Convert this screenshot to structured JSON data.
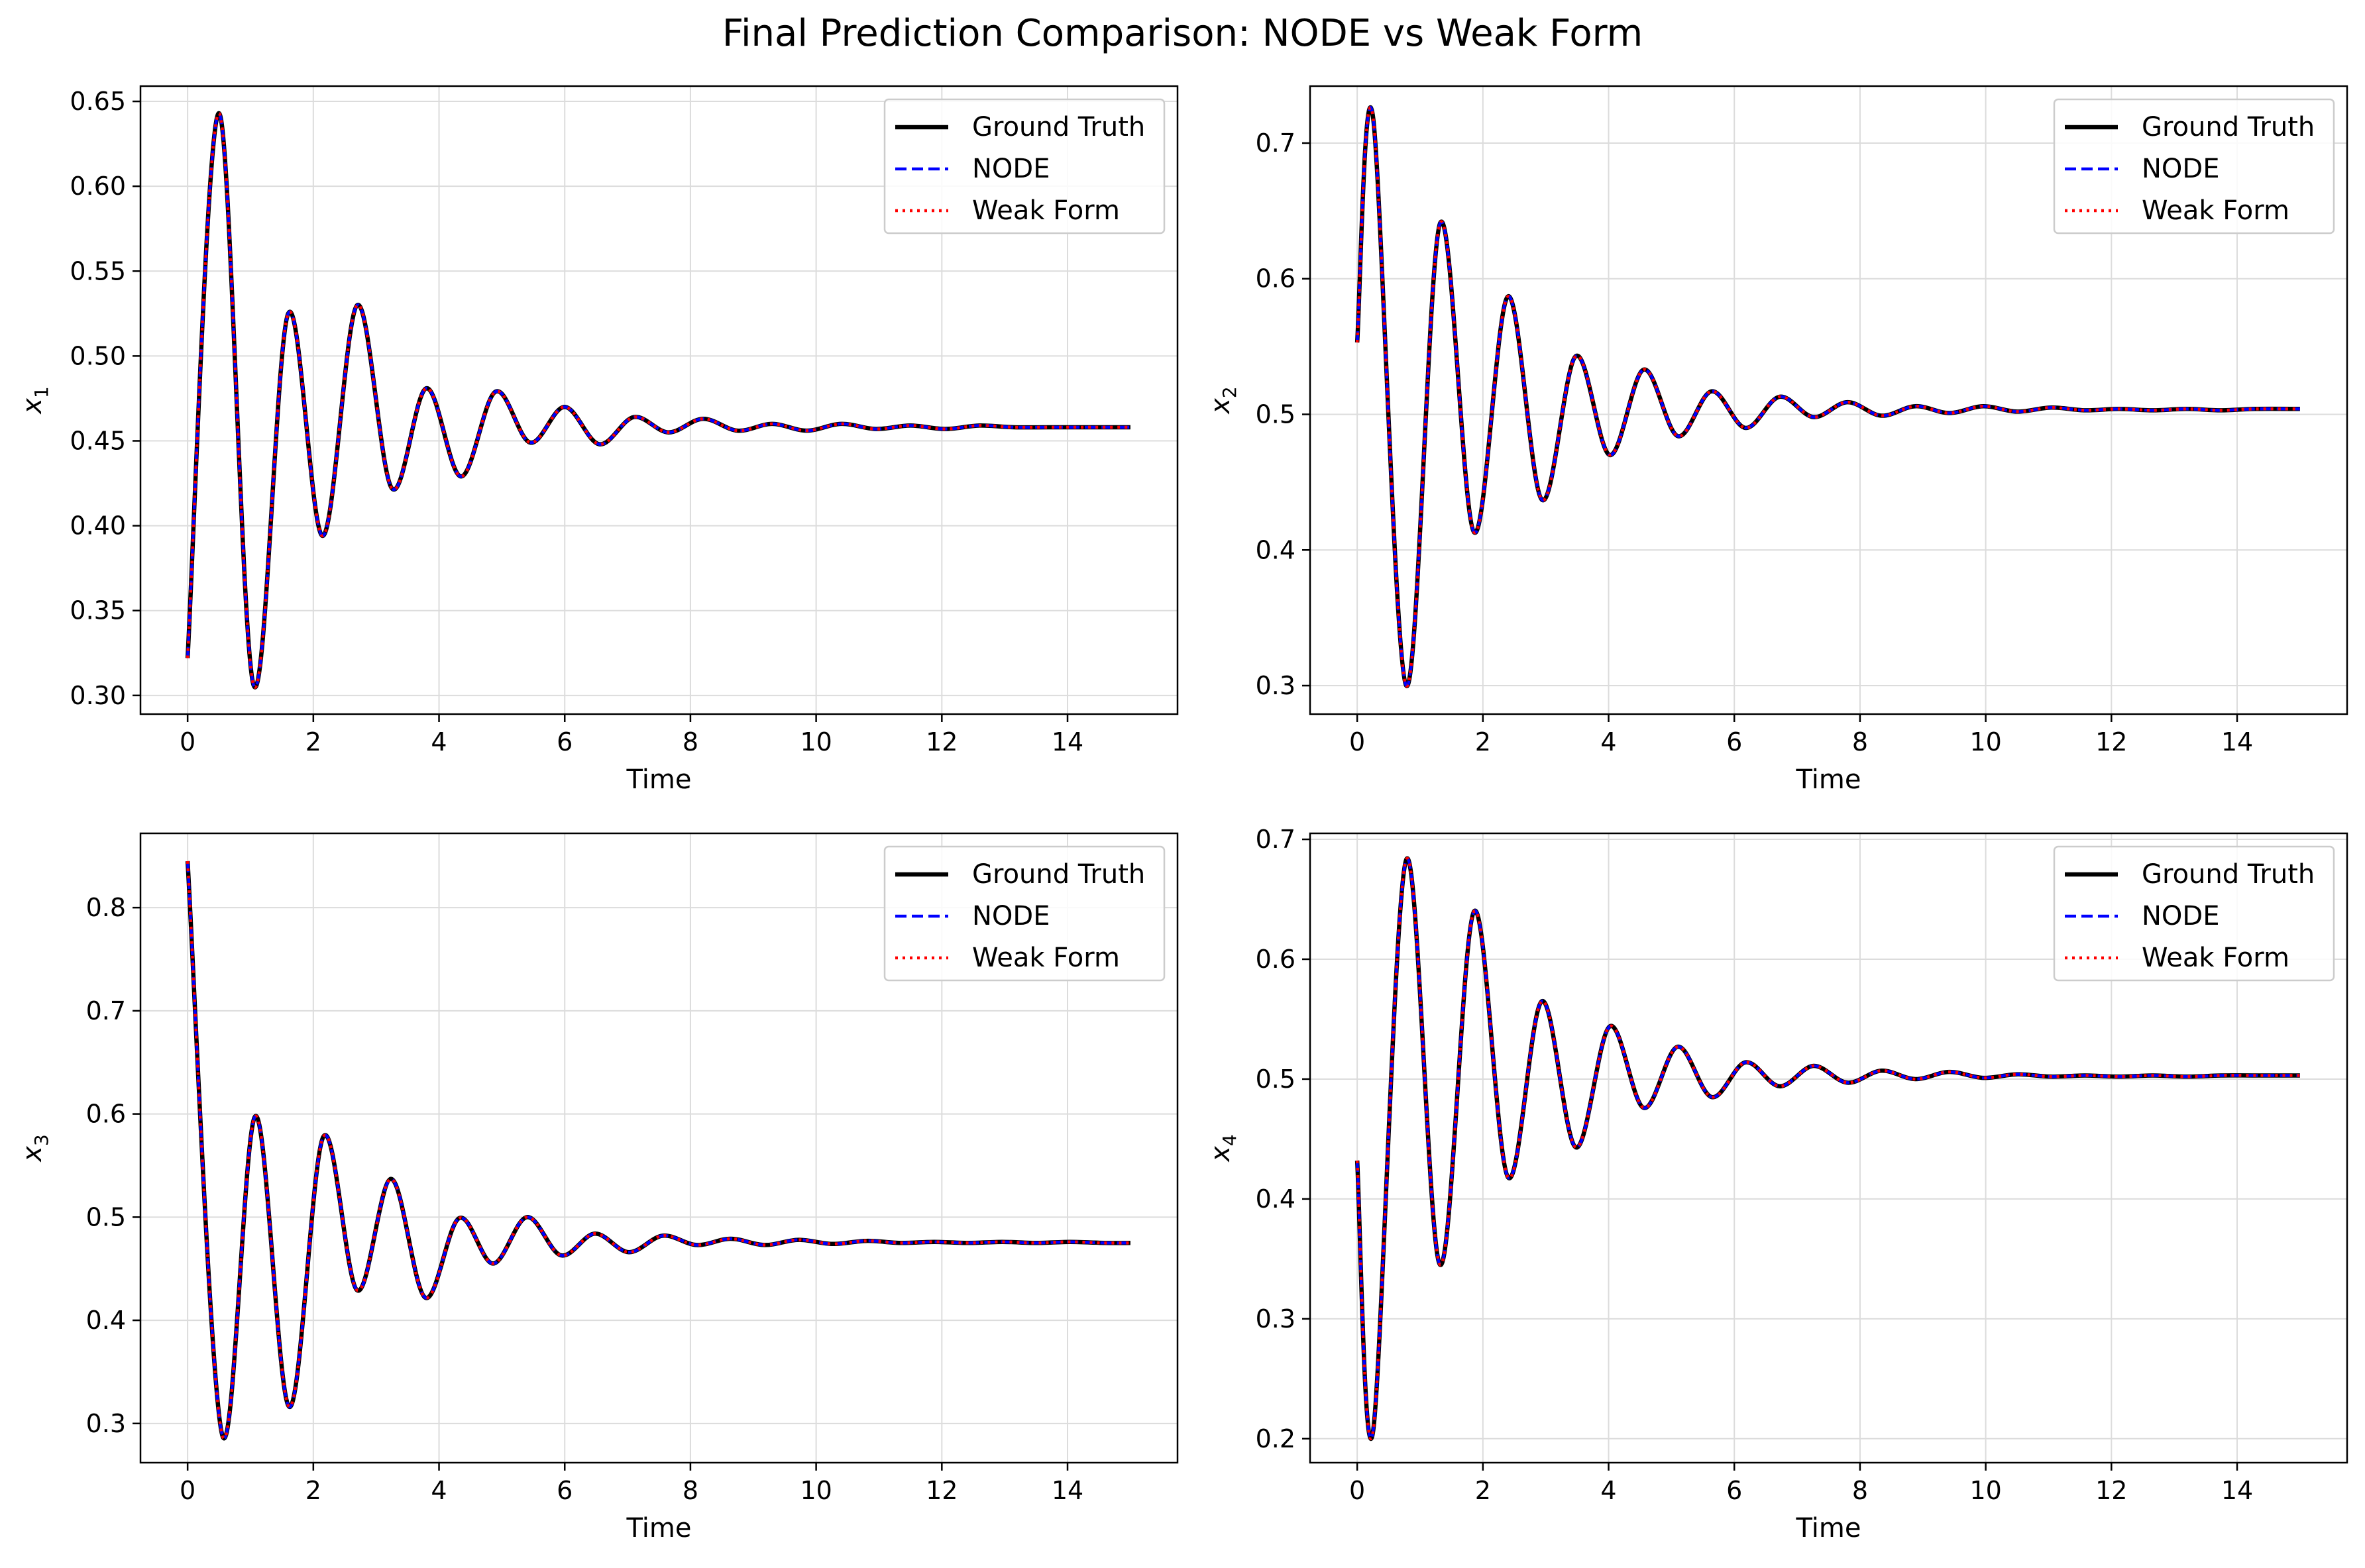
{
  "figure": {
    "title": "Final Prediction Comparison: NODE vs Weak Form"
  },
  "legend": {
    "entries": [
      {
        "label": "Ground Truth",
        "color": "#000000",
        "style": "solid"
      },
      {
        "label": "NODE",
        "color": "#0000ff",
        "style": "dashed"
      },
      {
        "label": "Weak Form",
        "color": "#ff0000",
        "style": "dotted"
      }
    ],
    "placement": "upper right"
  },
  "chart_data": [
    {
      "type": "line",
      "xlabel": "Time",
      "ylabel": "x",
      "ylabel_sub": "1",
      "xlim": [
        -0.75,
        15.75
      ],
      "ylim": [
        0.289,
        0.659
      ],
      "xticks": [
        0,
        2,
        4,
        6,
        8,
        10,
        12,
        14
      ],
      "yticks": [
        0.3,
        0.35,
        0.4,
        0.45,
        0.5,
        0.55,
        0.6,
        0.65
      ],
      "ytick_labels": [
        "0.30",
        "0.35",
        "0.40",
        "0.45",
        "0.50",
        "0.55",
        "0.60",
        "0.65"
      ],
      "grid": true,
      "legend": "upper right",
      "series_x": [
        0,
        0.5,
        1.05,
        1.6,
        2.15,
        2.7,
        3.25,
        3.8,
        4.35,
        4.9,
        5.45,
        6.0,
        6.55,
        7.1,
        7.65,
        8.2,
        8.75,
        9.3,
        9.85,
        10.4,
        10.95,
        11.5,
        12.05,
        12.6,
        13.15,
        13.7,
        14.25,
        14.8,
        15.0
      ],
      "series_y": [
        0.322,
        0.643,
        0.306,
        0.525,
        0.394,
        0.53,
        0.422,
        0.481,
        0.429,
        0.479,
        0.449,
        0.47,
        0.448,
        0.464,
        0.455,
        0.463,
        0.456,
        0.46,
        0.456,
        0.46,
        0.457,
        0.459,
        0.457,
        0.459,
        0.458,
        0.458,
        0.458,
        0.458,
        0.458
      ]
    },
    {
      "type": "line",
      "xlabel": "Time",
      "ylabel": "x",
      "ylabel_sub": "2",
      "xlim": [
        -0.75,
        15.75
      ],
      "ylim": [
        0.279,
        0.742
      ],
      "xticks": [
        0,
        2,
        4,
        6,
        8,
        10,
        12,
        14
      ],
      "yticks": [
        0.3,
        0.4,
        0.5,
        0.6,
        0.7
      ],
      "ytick_labels": [
        "0.3",
        "0.4",
        "0.5",
        "0.6",
        "0.7"
      ],
      "grid": true,
      "legend": "upper right",
      "series_x": [
        0,
        0.25,
        0.78,
        1.32,
        1.86,
        2.4,
        2.94,
        3.48,
        4.02,
        4.56,
        5.1,
        5.64,
        6.18,
        6.72,
        7.26,
        7.8,
        8.34,
        8.88,
        9.42,
        9.96,
        10.5,
        11.04,
        11.58,
        12.12,
        12.66,
        13.2,
        13.74,
        14.28,
        15.0
      ],
      "series_y": [
        0.553,
        0.72,
        0.3,
        0.641,
        0.413,
        0.587,
        0.437,
        0.543,
        0.47,
        0.533,
        0.484,
        0.517,
        0.49,
        0.513,
        0.498,
        0.509,
        0.499,
        0.506,
        0.501,
        0.506,
        0.502,
        0.505,
        0.503,
        0.504,
        0.503,
        0.504,
        0.503,
        0.504,
        0.504
      ]
    },
    {
      "type": "line",
      "xlabel": "Time",
      "ylabel": "x",
      "ylabel_sub": "3",
      "xlim": [
        -0.75,
        15.75
      ],
      "ylim": [
        0.262,
        0.872
      ],
      "xticks": [
        0,
        2,
        4,
        6,
        8,
        10,
        12,
        14
      ],
      "yticks": [
        0.3,
        0.4,
        0.5,
        0.6,
        0.7,
        0.8
      ],
      "ytick_labels": [
        "0.3",
        "0.4",
        "0.5",
        "0.6",
        "0.7",
        "0.8"
      ],
      "grid": true,
      "legend": "upper right",
      "series_x": [
        0,
        0.55,
        1.08,
        1.62,
        2.16,
        2.7,
        3.24,
        3.78,
        4.32,
        4.86,
        5.4,
        5.94,
        6.48,
        7.02,
        7.56,
        8.1,
        8.64,
        9.18,
        9.72,
        10.26,
        10.8,
        11.34,
        11.88,
        12.42,
        12.96,
        13.5,
        14.04,
        14.58,
        15.0
      ],
      "series_y": [
        0.845,
        0.289,
        0.598,
        0.316,
        0.578,
        0.429,
        0.537,
        0.422,
        0.499,
        0.455,
        0.5,
        0.463,
        0.484,
        0.466,
        0.482,
        0.473,
        0.479,
        0.473,
        0.478,
        0.474,
        0.477,
        0.475,
        0.476,
        0.475,
        0.476,
        0.475,
        0.476,
        0.475,
        0.475
      ]
    },
    {
      "type": "line",
      "xlabel": "Time",
      "ylabel": "x",
      "ylabel_sub": "4",
      "xlim": [
        -0.75,
        15.75
      ],
      "ylim": [
        0.18,
        0.705
      ],
      "xticks": [
        0,
        2,
        4,
        6,
        8,
        10,
        12,
        14
      ],
      "yticks": [
        0.2,
        0.3,
        0.4,
        0.5,
        0.6,
        0.7
      ],
      "ytick_labels": [
        "0.2",
        "0.3",
        "0.4",
        "0.5",
        "0.6",
        "0.7"
      ],
      "grid": true,
      "legend": "upper right",
      "series_x": [
        0,
        0.25,
        0.78,
        1.32,
        1.86,
        2.4,
        2.94,
        3.48,
        4.02,
        4.56,
        5.1,
        5.64,
        6.18,
        6.72,
        7.26,
        7.8,
        8.34,
        8.88,
        9.42,
        9.96,
        10.5,
        11.04,
        11.58,
        12.12,
        12.66,
        13.2,
        13.74,
        14.28,
        15.0
      ],
      "series_y": [
        0.432,
        0.205,
        0.683,
        0.345,
        0.64,
        0.418,
        0.565,
        0.443,
        0.544,
        0.476,
        0.527,
        0.485,
        0.514,
        0.494,
        0.511,
        0.497,
        0.507,
        0.5,
        0.506,
        0.501,
        0.504,
        0.502,
        0.503,
        0.502,
        0.503,
        0.502,
        0.503,
        0.503,
        0.503
      ]
    }
  ]
}
